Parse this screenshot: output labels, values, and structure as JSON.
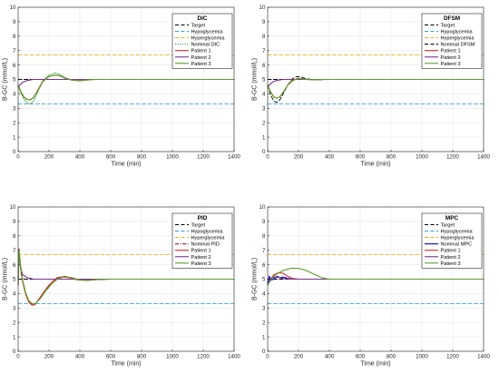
{
  "colors": {
    "target": "#000000",
    "hypoglycemia": "#3da4dc",
    "hyperglycemia": "#e8b32e",
    "patient1": "#d62728",
    "patient2": "#7e2f8e",
    "patient3": "#5aa02c",
    "nominal_dic": "#2e9b3a",
    "nominal_dfsm": "#000000",
    "nominal_pid": "#a2142f",
    "nominal_mpc": "#0000cc",
    "grid": "#e6e6e6",
    "axis": "#262626"
  },
  "chart_data": [
    {
      "type": "line",
      "title": "DIC",
      "xlabel": "Time (min)",
      "ylabel": "B-GC (mmol/L)",
      "xlim": [
        0,
        1400
      ],
      "ylim": [
        0,
        10
      ],
      "xticks": [
        "0",
        "200",
        "400",
        "600",
        "800",
        "1000",
        "1200",
        "1400"
      ],
      "yticks": [
        "0",
        "1",
        "2",
        "3",
        "4",
        "5",
        "6",
        "7",
        "8",
        "9",
        "10"
      ],
      "grid": true,
      "legend_position": "top-right",
      "series": [
        {
          "name": "Target",
          "style": "dashed",
          "color": "target",
          "x": [
            0,
            1400
          ],
          "y": [
            5,
            5
          ]
        },
        {
          "name": "Hypoglycemia",
          "style": "dashed",
          "color": "hypoglycemia",
          "x": [
            0,
            1400
          ],
          "y": [
            3.3,
            3.3
          ]
        },
        {
          "name": "Hyperglycemia",
          "style": "dashed",
          "color": "hyperglycemia",
          "x": [
            0,
            1400
          ],
          "y": [
            6.7,
            6.7
          ]
        },
        {
          "name": "Nominal DIC",
          "style": "dotted",
          "color": "nominal_dic",
          "x": [
            0,
            20,
            40,
            60,
            80,
            100,
            130,
            160,
            200,
            240,
            270,
            300,
            350,
            400,
            450,
            500,
            600,
            800,
            1400
          ],
          "y": [
            4.5,
            4.0,
            3.6,
            3.35,
            3.3,
            3.5,
            4.2,
            4.9,
            5.3,
            5.45,
            5.35,
            5.15,
            4.95,
            4.9,
            4.95,
            5.0,
            5.0,
            5.0,
            5.0
          ]
        },
        {
          "name": "Patient 1",
          "style": "solid",
          "color": "patient1",
          "x": [
            0,
            20,
            40,
            60,
            80,
            100,
            130,
            160,
            200,
            240,
            270,
            300,
            350,
            400,
            450,
            500,
            600,
            800,
            1400
          ],
          "y": [
            4.6,
            4.1,
            3.75,
            3.6,
            3.6,
            3.75,
            4.3,
            4.9,
            5.2,
            5.3,
            5.25,
            5.1,
            4.95,
            4.92,
            4.97,
            5.0,
            5.0,
            5.0,
            5.0
          ]
        },
        {
          "name": "Patient 2",
          "style": "solid",
          "color": "patient2",
          "x": [
            0,
            15,
            30,
            50,
            70,
            100,
            150,
            200,
            300,
            1400
          ],
          "y": [
            4.5,
            4.65,
            4.8,
            4.9,
            4.95,
            5.0,
            5.0,
            5.0,
            5.0,
            5.0
          ]
        },
        {
          "name": "Patient 3",
          "style": "solid",
          "color": "patient3",
          "x": [
            0,
            20,
            40,
            60,
            80,
            100,
            130,
            160,
            200,
            240,
            270,
            300,
            350,
            400,
            450,
            500,
            600,
            800,
            1400
          ],
          "y": [
            4.6,
            4.1,
            3.75,
            3.6,
            3.6,
            3.75,
            4.25,
            4.85,
            5.2,
            5.3,
            5.25,
            5.1,
            4.96,
            4.93,
            4.97,
            5.0,
            5.0,
            5.0,
            5.0
          ]
        }
      ]
    },
    {
      "type": "line",
      "title": "DFSM",
      "xlabel": "Time (min)",
      "ylabel": "B-GC (mmol/L)",
      "xlim": [
        0,
        1400
      ],
      "ylim": [
        0,
        10
      ],
      "xticks": [
        "0",
        "200",
        "400",
        "600",
        "800",
        "1000",
        "1200",
        "1400"
      ],
      "yticks": [
        "0",
        "1",
        "2",
        "3",
        "4",
        "5",
        "6",
        "7",
        "8",
        "9",
        "10"
      ],
      "grid": true,
      "legend_position": "top-right",
      "series": [
        {
          "name": "Target",
          "style": "dashed",
          "color": "target",
          "x": [
            0,
            1400
          ],
          "y": [
            5,
            5
          ]
        },
        {
          "name": "Hypoglycemia",
          "style": "dashed",
          "color": "hypoglycemia",
          "x": [
            0,
            1400
          ],
          "y": [
            3.3,
            3.3
          ]
        },
        {
          "name": "Hyperglycemia",
          "style": "dashed",
          "color": "hyperglycemia",
          "x": [
            0,
            1400
          ],
          "y": [
            6.7,
            6.7
          ]
        },
        {
          "name": "Nominal DFSM",
          "style": "dashed",
          "color": "nominal_dfsm",
          "x": [
            0,
            20,
            40,
            60,
            80,
            100,
            130,
            160,
            190,
            220,
            250,
            300,
            350,
            400,
            450,
            600,
            1400
          ],
          "y": [
            4.6,
            3.9,
            3.5,
            3.4,
            3.6,
            4.0,
            4.6,
            5.05,
            5.2,
            5.15,
            5.05,
            4.98,
            4.98,
            5.0,
            5.0,
            5.0,
            5.0
          ]
        },
        {
          "name": "Patient 1",
          "style": "solid",
          "color": "patient1",
          "x": [
            0,
            20,
            40,
            60,
            80,
            100,
            130,
            160,
            190,
            220,
            250,
            300,
            350,
            400,
            600,
            1400
          ],
          "y": [
            4.6,
            4.1,
            3.8,
            3.7,
            3.8,
            4.1,
            4.6,
            4.95,
            5.05,
            5.05,
            5.0,
            4.98,
            5.0,
            5.0,
            5.0,
            5.0
          ]
        },
        {
          "name": "Patient 2",
          "style": "solid",
          "color": "patient2",
          "x": [
            0,
            15,
            30,
            50,
            70,
            100,
            150,
            200,
            300,
            1400
          ],
          "y": [
            4.5,
            4.65,
            4.8,
            4.9,
            4.95,
            5.0,
            5.0,
            5.0,
            5.0,
            5.0
          ]
        },
        {
          "name": "Patient 3",
          "style": "solid",
          "color": "patient3",
          "x": [
            0,
            20,
            40,
            60,
            80,
            100,
            130,
            160,
            190,
            220,
            250,
            300,
            350,
            400,
            600,
            1400
          ],
          "y": [
            4.6,
            4.1,
            3.8,
            3.7,
            3.8,
            4.1,
            4.6,
            4.9,
            5.05,
            5.05,
            5.0,
            4.98,
            5.0,
            5.0,
            5.0,
            5.0
          ]
        }
      ]
    },
    {
      "type": "line",
      "title": "PID",
      "xlabel": "Time (min)",
      "ylabel": "B-GC (mmol/L)",
      "xlim": [
        0,
        1400
      ],
      "ylim": [
        0,
        10
      ],
      "xticks": [
        "0",
        "200",
        "400",
        "600",
        "800",
        "1000",
        "1200",
        "1400"
      ],
      "yticks": [
        "0",
        "1",
        "2",
        "3",
        "4",
        "5",
        "6",
        "7",
        "8",
        "9",
        "10"
      ],
      "grid": true,
      "legend_position": "top-right",
      "series": [
        {
          "name": "Target",
          "style": "dashed",
          "color": "target",
          "x": [
            0,
            1400
          ],
          "y": [
            5,
            5
          ]
        },
        {
          "name": "Hypoglycemia",
          "style": "dashed",
          "color": "hypoglycemia",
          "x": [
            0,
            1400
          ],
          "y": [
            3.3,
            3.3
          ]
        },
        {
          "name": "Hyperglycemia",
          "style": "dashed",
          "color": "hyperglycemia",
          "x": [
            0,
            1400
          ],
          "y": [
            6.7,
            6.7
          ]
        },
        {
          "name": "Nominal PID",
          "style": "dashdot",
          "color": "nominal_pid",
          "x": [
            0,
            5,
            10,
            20,
            40,
            60,
            80,
            100,
            130,
            160,
            200,
            250,
            300,
            350,
            400,
            450,
            500,
            600,
            700,
            1400
          ],
          "y": [
            4.6,
            6.8,
            6.2,
            5.3,
            4.3,
            3.7,
            3.3,
            3.2,
            3.5,
            4.0,
            4.6,
            5.1,
            5.2,
            5.1,
            4.95,
            4.9,
            4.95,
            5.0,
            5.0,
            5.0
          ]
        },
        {
          "name": "Patient 1",
          "style": "solid",
          "color": "patient1",
          "x": [
            0,
            5,
            15,
            30,
            50,
            70,
            90,
            110,
            140,
            180,
            220,
            260,
            300,
            330,
            360,
            400,
            450,
            500,
            600,
            700,
            1400
          ],
          "y": [
            4.6,
            7.1,
            6.0,
            4.8,
            3.9,
            3.4,
            3.2,
            3.25,
            3.7,
            4.3,
            4.8,
            5.1,
            5.15,
            5.1,
            5.0,
            4.93,
            4.92,
            4.97,
            5.0,
            5.0,
            5.0
          ]
        },
        {
          "name": "Patient 2",
          "style": "solid",
          "color": "patient2",
          "x": [
            0,
            5,
            15,
            30,
            60,
            100,
            150,
            200,
            300,
            1400
          ],
          "y": [
            4.6,
            6.9,
            5.8,
            5.3,
            5.1,
            5.0,
            5.0,
            5.0,
            5.0,
            5.0
          ]
        },
        {
          "name": "Patient 3",
          "style": "solid",
          "color": "patient3",
          "x": [
            0,
            5,
            15,
            30,
            50,
            70,
            90,
            110,
            140,
            180,
            220,
            260,
            300,
            330,
            360,
            400,
            450,
            500,
            600,
            700,
            1400
          ],
          "y": [
            4.6,
            7.0,
            6.0,
            4.9,
            4.0,
            3.5,
            3.3,
            3.3,
            3.6,
            4.2,
            4.7,
            5.05,
            5.15,
            5.12,
            5.05,
            4.95,
            4.92,
            4.97,
            5.0,
            5.0,
            5.0
          ]
        }
      ]
    },
    {
      "type": "line",
      "title": "MPC",
      "xlabel": "Time (min)",
      "ylabel": "B-GC (mmol/L)",
      "xlim": [
        0,
        1400
      ],
      "ylim": [
        0,
        10
      ],
      "xticks": [
        "0",
        "200",
        "400",
        "600",
        "800",
        "1000",
        "1200",
        "1400"
      ],
      "yticks": [
        "0",
        "1",
        "2",
        "3",
        "4",
        "5",
        "6",
        "7",
        "8",
        "9",
        "10"
      ],
      "grid": true,
      "legend_position": "top-right",
      "series": [
        {
          "name": "Target",
          "style": "dashed",
          "color": "target",
          "x": [
            0,
            1400
          ],
          "y": [
            5,
            5
          ]
        },
        {
          "name": "Hypoglycemia",
          "style": "dashed",
          "color": "hypoglycemia",
          "x": [
            0,
            1400
          ],
          "y": [
            3.3,
            3.3
          ]
        },
        {
          "name": "Hyperglycemia",
          "style": "dashed",
          "color": "hyperglycemia",
          "x": [
            0,
            1400
          ],
          "y": [
            6.7,
            6.7
          ]
        },
        {
          "name": "Nominal MPC",
          "style": "solid",
          "color": "nominal_mpc",
          "x": [
            0,
            10,
            25,
            40,
            60,
            80,
            100,
            130,
            160,
            200,
            250,
            300,
            1400
          ],
          "y": [
            4.6,
            5.2,
            4.95,
            5.0,
            5.2,
            5.1,
            5.15,
            5.05,
            5.0,
            5.0,
            5.0,
            5.0,
            5.0
          ]
        },
        {
          "name": "Patient 1",
          "style": "solid",
          "color": "patient1",
          "x": [
            0,
            20,
            40,
            70,
            100,
            130,
            160,
            200,
            250,
            300,
            1400
          ],
          "y": [
            4.6,
            5.0,
            5.3,
            5.45,
            5.4,
            5.2,
            5.05,
            5.0,
            5.0,
            5.0,
            5.0
          ]
        },
        {
          "name": "Patient 2",
          "style": "solid",
          "color": "patient2",
          "x": [
            0,
            15,
            30,
            50,
            80,
            100,
            150,
            200,
            300,
            1400
          ],
          "y": [
            4.6,
            4.95,
            5.05,
            5.15,
            5.1,
            5.05,
            5.0,
            5.0,
            5.0,
            5.0
          ]
        },
        {
          "name": "Patient 3",
          "style": "solid",
          "color": "patient3",
          "x": [
            0,
            25,
            50,
            100,
            150,
            200,
            250,
            300,
            350,
            400,
            450,
            500,
            1400
          ],
          "y": [
            4.6,
            5.0,
            5.3,
            5.6,
            5.75,
            5.75,
            5.6,
            5.35,
            5.1,
            5.0,
            5.0,
            5.0,
            5.0
          ]
        }
      ]
    }
  ]
}
